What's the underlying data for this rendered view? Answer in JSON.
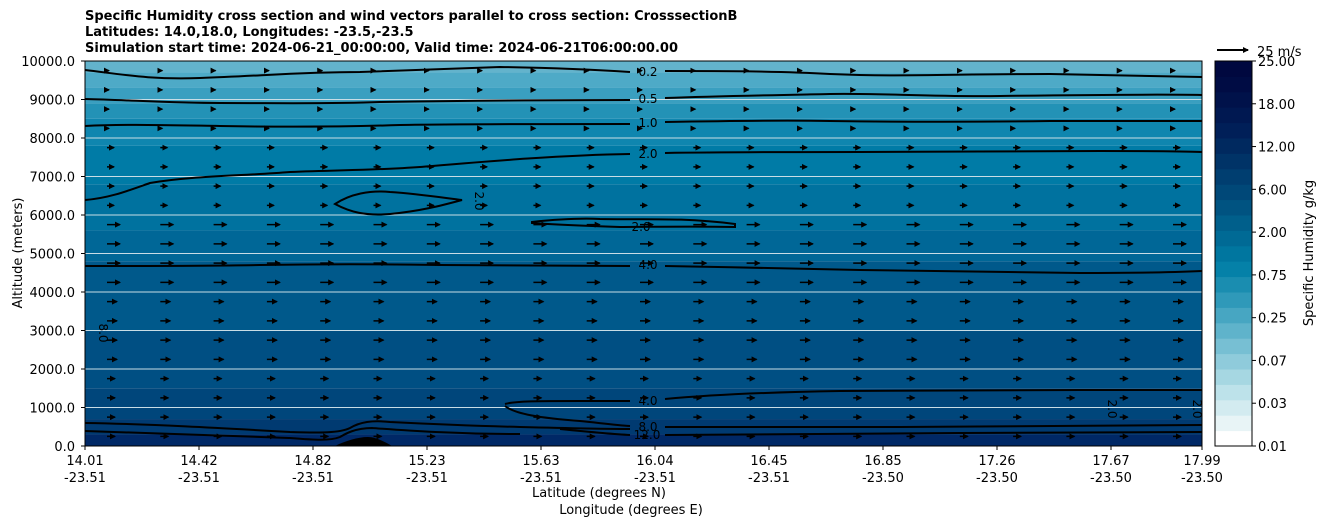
{
  "title_lines": [
    "Specific Humidity cross section and wind vectors parallel to cross section: CrosssectionB",
    "Latitudes: 14.0,18.0, Longitudes: -23.5,-23.5",
    "Simulation start time: 2024-06-21_00:00:00, Valid time: 2024-06-21T06:00:00.00"
  ],
  "chart_data": {
    "type": "heatmap",
    "ylabel": "Altitude (meters)",
    "xlabel_lat": "Latitude (degrees N)",
    "xlabel_lon": "Longitude (degrees E)",
    "ylim": [
      0,
      10000
    ],
    "y_ticks": [
      "0.0",
      "1000.0",
      "2000.0",
      "3000.0",
      "4000.0",
      "5000.0",
      "6000.0",
      "7000.0",
      "8000.0",
      "9000.0",
      "10000.0"
    ],
    "x_ticks_lat": [
      "14.01",
      "14.42",
      "14.82",
      "15.23",
      "15.63",
      "16.04",
      "16.45",
      "16.85",
      "17.26",
      "17.67",
      "17.99"
    ],
    "x_ticks_lon": [
      "-23.51",
      "-23.51",
      "-23.51",
      "-23.51",
      "-23.51",
      "-23.51",
      "-23.51",
      "-23.50",
      "-23.50",
      "-23.50",
      "-23.50"
    ],
    "colorbar_label": "Specific Humidity g/kg",
    "colorbar_ticks": [
      "0.01",
      "0.03",
      "0.07",
      "0.25",
      "0.75",
      "2.00",
      "6.00",
      "12.00",
      "18.00",
      "25.00"
    ],
    "contour_labels": [
      "0.2",
      "0.5",
      "1.0",
      "2.0",
      "2.0",
      "2.0",
      "4.0",
      "4.0",
      "8.0",
      "12.0",
      "8.0",
      "2.0",
      "2.0"
    ],
    "quiver_key_label": "25 m/s",
    "grid": true
  }
}
